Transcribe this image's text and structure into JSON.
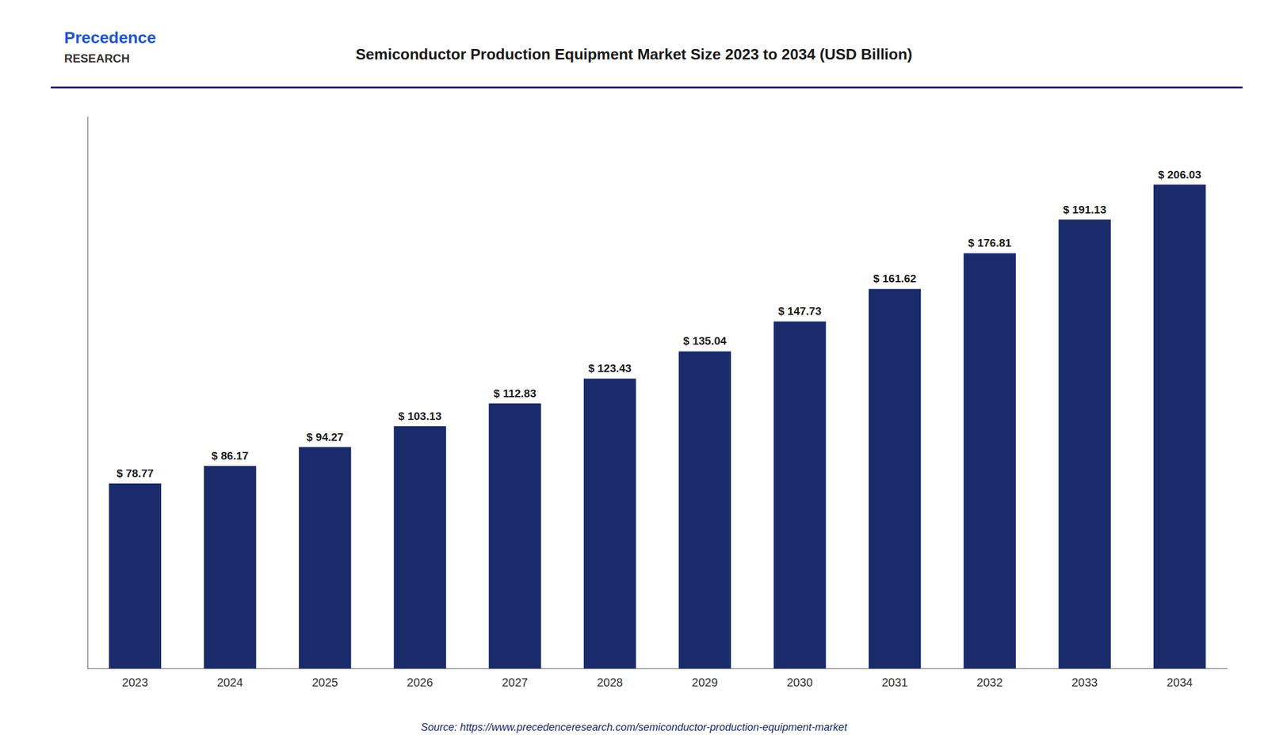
{
  "chart_data": {
    "type": "bar",
    "title": "Semiconductor Production Equipment Market Size 2023 to 2034 (USD Billion)",
    "categories": [
      "2023",
      "2024",
      "2025",
      "2026",
      "2027",
      "2028",
      "2029",
      "2030",
      "2031",
      "2032",
      "2033",
      "2034"
    ],
    "values": [
      78.77,
      86.17,
      94.27,
      103.13,
      112.83,
      123.43,
      135.04,
      147.73,
      161.62,
      176.81,
      191.13,
      206.03
    ],
    "value_labels": [
      "$ 78.77",
      "$ 86.17",
      "$ 94.27",
      "$ 103.13",
      "$ 112.83",
      "$ 123.43",
      "$ 135.04",
      "$ 147.73",
      "$ 161.62",
      "$ 176.81",
      "$ 191.13",
      "$ 206.03"
    ],
    "data_labels": true,
    "color": "#1a2b6b",
    "ylim": [
      0,
      235
    ],
    "tick_labels": "x",
    "grid": false,
    "annotations": [
      "Precedence",
      "RESEARCH",
      "Source: https://www.precedenceresearch.com/semiconductor-production-equipment-market"
    ]
  }
}
